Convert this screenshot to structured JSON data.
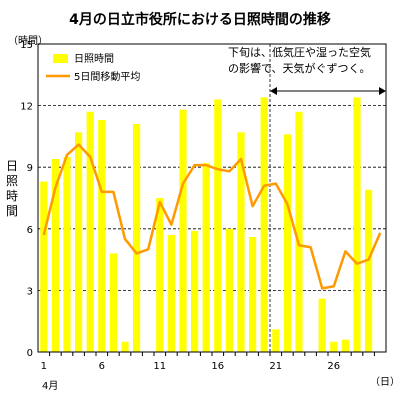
{
  "chart_data": {
    "type": "bar",
    "title": "4月の日立市役所における日照時間の推移",
    "ylabel": "日照時間",
    "yunit": "（時間）",
    "xunit": "（日）",
    "month_label": "4月",
    "ylim": [
      0,
      15
    ],
    "yticks": [
      "0",
      "3",
      "6",
      "9",
      "12",
      "15"
    ],
    "xticks": [
      "1",
      "6",
      "11",
      "16",
      "21",
      "26"
    ],
    "grid": "dashed-horizontal",
    "legend_position": "top-left",
    "annotation": {
      "line1": "下旬は、低気圧や湿った空気",
      "line2": "の影響で、天気がぐずつく。",
      "start_day": 20,
      "end_day": 30
    },
    "days": [
      1,
      2,
      3,
      4,
      5,
      6,
      7,
      8,
      9,
      10,
      11,
      12,
      13,
      14,
      15,
      16,
      17,
      18,
      19,
      20,
      21,
      22,
      23,
      24,
      25,
      26,
      27,
      28,
      29,
      30
    ],
    "series": [
      {
        "name": "日照時間",
        "kind": "bar",
        "color": "#ffff00",
        "values": [
          8.3,
          9.4,
          9.5,
          10.7,
          11.7,
          11.3,
          4.8,
          0.5,
          11.1,
          0.0,
          7.5,
          5.7,
          11.8,
          5.9,
          9.2,
          12.3,
          6.0,
          10.7,
          5.6,
          12.4,
          1.1,
          10.6,
          11.7,
          0.0,
          2.6,
          0.5,
          0.6,
          12.4,
          7.9,
          0.0
        ]
      },
      {
        "name": "5日間移動平均",
        "kind": "line",
        "color": "#ff9900",
        "values": [
          5.7,
          8.0,
          9.6,
          10.1,
          9.5,
          7.8,
          7.8,
          5.5,
          4.8,
          5.0,
          7.3,
          6.2,
          8.2,
          9.1,
          9.1,
          8.9,
          8.8,
          9.4,
          7.1,
          8.1,
          8.2,
          7.2,
          5.2,
          5.1,
          3.1,
          3.2,
          4.9,
          4.3,
          4.5,
          5.8
        ]
      }
    ]
  }
}
